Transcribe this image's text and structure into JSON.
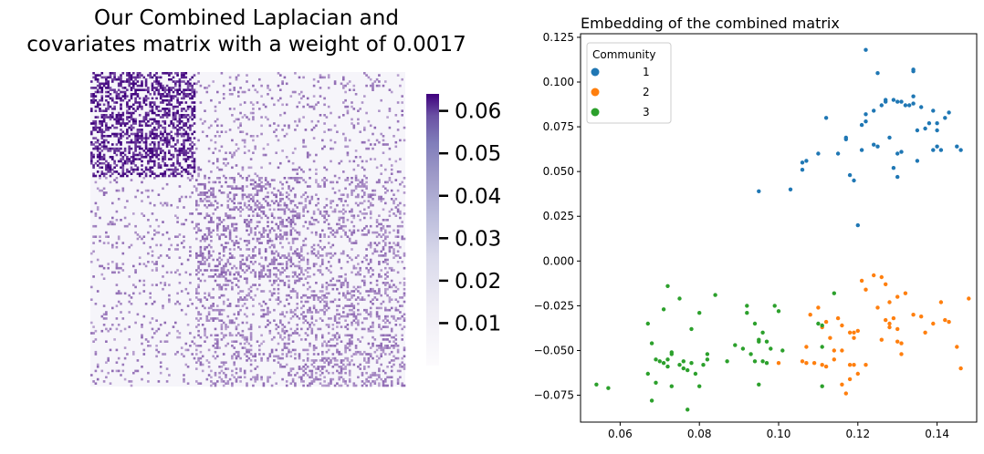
{
  "left_panel": {
    "title_line1": "Our Combined Laplacian and",
    "title_line2": "covariates matrix with a weight of 0.0017"
  },
  "right_panel": {
    "title": "Embedding of the combined matrix"
  },
  "colors": {
    "heat_low": "#fcfbfd",
    "heat_high": "#3f007d",
    "community_1": "#1f77b4",
    "community_2": "#ff7f0e",
    "community_3": "#2ca02c"
  },
  "chart_data": [
    {
      "type": "heatmap",
      "title": "Our Combined Laplacian and covariates matrix with a weight of 0.0017",
      "n": 150,
      "blocks": 3,
      "block_size": 50,
      "colorbar": {
        "ticks": [
          "0.01",
          "0.02",
          "0.03",
          "0.04",
          "0.05",
          "0.06"
        ],
        "tick_values": [
          0.01,
          0.02,
          0.03,
          0.04,
          0.05,
          0.06
        ],
        "vmin": 0,
        "vmax": 0.064,
        "colormap": "Purples"
      },
      "block_density": [
        [
          0.45,
          0.08,
          0.08
        ],
        [
          0.08,
          0.28,
          0.2
        ],
        [
          0.08,
          0.2,
          0.25
        ]
      ],
      "block_value": [
        [
          0.055,
          0.03,
          0.03
        ],
        [
          0.03,
          0.032,
          0.03
        ],
        [
          0.03,
          0.03,
          0.03
        ]
      ]
    },
    {
      "type": "scatter",
      "title": "Embedding of the combined matrix",
      "xlabel": "",
      "ylabel": "",
      "xlim": [
        0.05,
        0.15
      ],
      "ylim": [
        -0.09,
        0.127
      ],
      "xticks": [
        "0.06",
        "0.08",
        "0.10",
        "0.12",
        "0.14"
      ],
      "xtick_values": [
        0.06,
        0.08,
        0.1,
        0.12,
        0.14
      ],
      "yticks": [
        "−0.075",
        "−0.050",
        "−0.025",
        "0.000",
        "0.025",
        "0.050",
        "0.075",
        "0.100",
        "0.125"
      ],
      "ytick_values": [
        -0.075,
        -0.05,
        -0.025,
        0.0,
        0.025,
        0.05,
        0.075,
        0.1,
        0.125
      ],
      "legend": {
        "title": "Community",
        "position": "top-left",
        "labels": [
          "1",
          "2",
          "3"
        ]
      },
      "series": [
        {
          "name": "1",
          "points": [
            [
              0.122,
              0.118
            ],
            [
              0.125,
              0.105
            ],
            [
              0.134,
              0.107
            ],
            [
              0.134,
              0.106
            ],
            [
              0.112,
              0.08
            ],
            [
              0.117,
              0.069
            ],
            [
              0.117,
              0.068
            ],
            [
              0.121,
              0.062
            ],
            [
              0.121,
              0.076
            ],
            [
              0.122,
              0.078
            ],
            [
              0.122,
              0.082
            ],
            [
              0.124,
              0.084
            ],
            [
              0.124,
              0.065
            ],
            [
              0.125,
              0.064
            ],
            [
              0.126,
              0.087
            ],
            [
              0.127,
              0.089
            ],
            [
              0.127,
              0.09
            ],
            [
              0.128,
              0.069
            ],
            [
              0.129,
              0.052
            ],
            [
              0.129,
              0.09
            ],
            [
              0.13,
              0.089
            ],
            [
              0.13,
              0.06
            ],
            [
              0.13,
              0.047
            ],
            [
              0.131,
              0.061
            ],
            [
              0.131,
              0.089
            ],
            [
              0.132,
              0.087
            ],
            [
              0.133,
              0.087
            ],
            [
              0.134,
              0.092
            ],
            [
              0.134,
              0.088
            ],
            [
              0.135,
              0.073
            ],
            [
              0.135,
              0.056
            ],
            [
              0.136,
              0.086
            ],
            [
              0.137,
              0.074
            ],
            [
              0.138,
              0.077
            ],
            [
              0.139,
              0.084
            ],
            [
              0.139,
              0.062
            ],
            [
              0.14,
              0.073
            ],
            [
              0.14,
              0.077
            ],
            [
              0.14,
              0.064
            ],
            [
              0.141,
              0.062
            ],
            [
              0.142,
              0.08
            ],
            [
              0.143,
              0.083
            ],
            [
              0.145,
              0.064
            ],
            [
              0.146,
              0.062
            ],
            [
              0.095,
              0.039
            ],
            [
              0.103,
              0.04
            ],
            [
              0.106,
              0.055
            ],
            [
              0.106,
              0.051
            ],
            [
              0.107,
              0.056
            ],
            [
              0.11,
              0.06
            ],
            [
              0.115,
              0.06
            ],
            [
              0.118,
              0.048
            ],
            [
              0.119,
              0.045
            ],
            [
              0.12,
              0.02
            ]
          ]
        },
        {
          "name": "2",
          "points": [
            [
              0.121,
              -0.011
            ],
            [
              0.122,
              -0.016
            ],
            [
              0.124,
              -0.008
            ],
            [
              0.126,
              -0.009
            ],
            [
              0.127,
              -0.013
            ],
            [
              0.125,
              -0.026
            ],
            [
              0.128,
              -0.023
            ],
            [
              0.13,
              -0.02
            ],
            [
              0.132,
              -0.018
            ],
            [
              0.127,
              -0.033
            ],
            [
              0.128,
              -0.035
            ],
            [
              0.128,
              -0.037
            ],
            [
              0.129,
              -0.032
            ],
            [
              0.126,
              -0.044
            ],
            [
              0.13,
              -0.045
            ],
            [
              0.131,
              -0.046
            ],
            [
              0.131,
              -0.052
            ],
            [
              0.13,
              -0.038
            ],
            [
              0.134,
              -0.03
            ],
            [
              0.136,
              -0.031
            ],
            [
              0.137,
              -0.04
            ],
            [
              0.139,
              -0.035
            ],
            [
              0.141,
              -0.023
            ],
            [
              0.142,
              -0.033
            ],
            [
              0.143,
              -0.034
            ],
            [
              0.145,
              -0.048
            ],
            [
              0.146,
              -0.06
            ],
            [
              0.148,
              -0.021
            ],
            [
              0.11,
              -0.026
            ],
            [
              0.111,
              -0.037
            ],
            [
              0.112,
              -0.034
            ],
            [
              0.113,
              -0.043
            ],
            [
              0.115,
              -0.032
            ],
            [
              0.116,
              -0.036
            ],
            [
              0.118,
              -0.04
            ],
            [
              0.119,
              -0.04
            ],
            [
              0.12,
              -0.039
            ],
            [
              0.114,
              -0.05
            ],
            [
              0.114,
              -0.055
            ],
            [
              0.108,
              -0.03
            ],
            [
              0.107,
              -0.048
            ],
            [
              0.106,
              -0.056
            ],
            [
              0.107,
              -0.057
            ],
            [
              0.109,
              -0.057
            ],
            [
              0.111,
              -0.058
            ],
            [
              0.112,
              -0.059
            ],
            [
              0.116,
              -0.069
            ],
            [
              0.117,
              -0.074
            ],
            [
              0.118,
              -0.058
            ],
            [
              0.118,
              -0.066
            ],
            [
              0.119,
              -0.058
            ],
            [
              0.12,
              -0.063
            ],
            [
              0.122,
              -0.058
            ],
            [
              0.1,
              -0.057
            ],
            [
              0.116,
              -0.05
            ],
            [
              0.119,
              -0.043
            ]
          ]
        },
        {
          "name": "3",
          "points": [
            [
              0.054,
              -0.069
            ],
            [
              0.057,
              -0.071
            ],
            [
              0.067,
              -0.035
            ],
            [
              0.067,
              -0.063
            ],
            [
              0.068,
              -0.046
            ],
            [
              0.068,
              -0.078
            ],
            [
              0.069,
              -0.055
            ],
            [
              0.069,
              -0.068
            ],
            [
              0.07,
              -0.056
            ],
            [
              0.071,
              -0.027
            ],
            [
              0.071,
              -0.057
            ],
            [
              0.072,
              -0.014
            ],
            [
              0.072,
              -0.055
            ],
            [
              0.072,
              -0.059
            ],
            [
              0.073,
              -0.052
            ],
            [
              0.073,
              -0.07
            ],
            [
              0.075,
              -0.021
            ],
            [
              0.075,
              -0.058
            ],
            [
              0.076,
              -0.06
            ],
            [
              0.076,
              -0.056
            ],
            [
              0.077,
              -0.061
            ],
            [
              0.077,
              -0.083
            ],
            [
              0.078,
              -0.038
            ],
            [
              0.078,
              -0.057
            ],
            [
              0.079,
              -0.063
            ],
            [
              0.08,
              -0.029
            ],
            [
              0.08,
              -0.07
            ],
            [
              0.081,
              -0.058
            ],
            [
              0.082,
              -0.052
            ],
            [
              0.082,
              -0.055
            ],
            [
              0.084,
              -0.019
            ],
            [
              0.087,
              -0.056
            ],
            [
              0.089,
              -0.047
            ],
            [
              0.091,
              -0.049
            ],
            [
              0.092,
              -0.025
            ],
            [
              0.092,
              -0.029
            ],
            [
              0.093,
              -0.052
            ],
            [
              0.094,
              -0.035
            ],
            [
              0.094,
              -0.056
            ],
            [
              0.095,
              -0.044
            ],
            [
              0.095,
              -0.045
            ],
            [
              0.095,
              -0.069
            ],
            [
              0.096,
              -0.04
            ],
            [
              0.096,
              -0.056
            ],
            [
              0.097,
              -0.057
            ],
            [
              0.098,
              -0.049
            ],
            [
              0.099,
              -0.025
            ],
            [
              0.1,
              -0.028
            ],
            [
              0.101,
              -0.05
            ],
            [
              0.11,
              -0.035
            ],
            [
              0.111,
              -0.036
            ],
            [
              0.111,
              -0.048
            ],
            [
              0.111,
              -0.07
            ],
            [
              0.114,
              -0.018
            ],
            [
              0.073,
              -0.051
            ],
            [
              0.097,
              -0.045
            ]
          ]
        }
      ]
    }
  ]
}
